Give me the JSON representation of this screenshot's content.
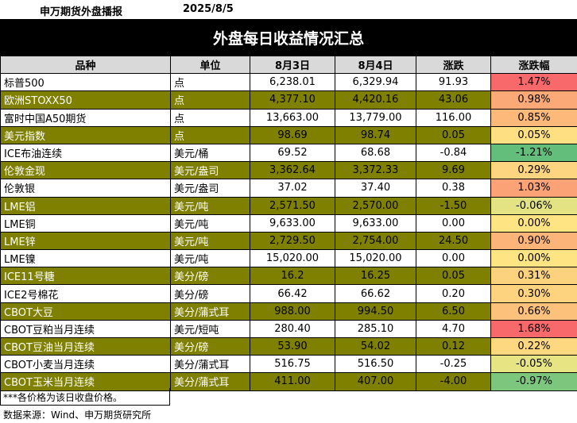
{
  "header": {
    "brand": "申万期货外盘播报",
    "date": "2025/8/5",
    "title": "外盘每日收益情况汇总"
  },
  "columns": [
    "品种",
    "单位",
    "8月3日",
    "8月4日",
    "涨跌",
    "涨跌幅"
  ],
  "rows": [
    {
      "name": "标普500",
      "unit": "点",
      "d1": "6,238.01",
      "d2": "6,329.94",
      "chg": "91.93",
      "pct": "1.47%",
      "pct_color": "#f8696b",
      "hl": false
    },
    {
      "name": "欧洲STOXX50",
      "unit": "点",
      "d1": "4,377.10",
      "d2": "4,420.16",
      "chg": "43.06",
      "pct": "0.98%",
      "pct_color": "#fbaa77",
      "hl": true
    },
    {
      "name": "富时中国A50期货",
      "unit": "点",
      "d1": "13,663.00",
      "d2": "13,779.00",
      "chg": "116.00",
      "pct": "0.85%",
      "pct_color": "#fcb97a",
      "hl": false
    },
    {
      "name": "美元指数",
      "unit": "点",
      "d1": "98.69",
      "d2": "98.74",
      "chg": "0.05",
      "pct": "0.05%",
      "pct_color": "#fedf81",
      "hl": true
    },
    {
      "name": "ICE布油连续",
      "unit": "美元/桶",
      "d1": "69.52",
      "d2": "68.68",
      "chg": "-0.84",
      "pct": "-1.21%",
      "pct_color": "#63be7b",
      "hl": false
    },
    {
      "name": "伦敦金现",
      "unit": "美元/盎司",
      "d1": "3,362.64",
      "d2": "3,372.33",
      "chg": "9.69",
      "pct": "0.29%",
      "pct_color": "#fdd47f",
      "hl": true
    },
    {
      "name": "伦敦银",
      "unit": "美元/盎司",
      "d1": "37.02",
      "d2": "37.40",
      "chg": "0.38",
      "pct": "1.03%",
      "pct_color": "#fba376",
      "hl": false
    },
    {
      "name": "LME铝",
      "unit": "美元/吨",
      "d1": "2,571.50",
      "d2": "2,570.00",
      "chg": "-1.50",
      "pct": "-0.06%",
      "pct_color": "#e3e383",
      "hl": true
    },
    {
      "name": "LME铜",
      "unit": "美元/吨",
      "d1": "9,633.00",
      "d2": "9,633.00",
      "chg": "0.00",
      "pct": "0.00%",
      "pct_color": "#fee482",
      "hl": false
    },
    {
      "name": "LME锌",
      "unit": "美元/吨",
      "d1": "2,729.50",
      "d2": "2,754.00",
      "chg": "24.50",
      "pct": "0.90%",
      "pct_color": "#fcb479",
      "hl": true
    },
    {
      "name": "LME镍",
      "unit": "美元/吨",
      "d1": "15,020.00",
      "d2": "15,020.00",
      "chg": "0.00",
      "pct": "0.00%",
      "pct_color": "#fee482",
      "hl": false
    },
    {
      "name": "ICE11号糖",
      "unit": "美分/磅",
      "d1": "16.2",
      "d2": "16.25",
      "chg": "0.05",
      "pct": "0.31%",
      "pct_color": "#fdd27f",
      "hl": true
    },
    {
      "name": "ICE2号棉花",
      "unit": "美分/磅",
      "d1": "66.42",
      "d2": "66.62",
      "chg": "0.20",
      "pct": "0.30%",
      "pct_color": "#fdd37f",
      "hl": false
    },
    {
      "name": "CBOT大豆",
      "unit": "美分/蒲式耳",
      "d1": "988.00",
      "d2": "994.50",
      "chg": "6.50",
      "pct": "0.66%",
      "pct_color": "#fcc27c",
      "hl": true
    },
    {
      "name": "CBOT豆粕当月连续",
      "unit": "美元/短吨",
      "d1": "280.40",
      "d2": "285.10",
      "chg": "4.70",
      "pct": "1.68%",
      "pct_color": "#f8696b",
      "hl": false
    },
    {
      "name": "CBOT豆油当月连续",
      "unit": "美分/磅",
      "d1": "53.90",
      "d2": "54.02",
      "chg": "0.12",
      "pct": "0.22%",
      "pct_color": "#fdd880",
      "hl": true
    },
    {
      "name": "CBOT小麦当月连续",
      "unit": "美分/蒲式耳",
      "d1": "516.75",
      "d2": "516.50",
      "chg": "-0.25",
      "pct": "-0.05%",
      "pct_color": "#e6e483",
      "hl": false
    },
    {
      "name": "CBOT玉米当月连续",
      "unit": "美分/蒲式耳",
      "d1": "411.00",
      "d2": "407.00",
      "chg": "-4.00",
      "pct": "-0.97%",
      "pct_color": "#7dc67d",
      "hl": true
    }
  ],
  "footer": {
    "note": "***各价格为该日收盘价格。",
    "source": "数据来源：Wind、申万期货研究所"
  }
}
